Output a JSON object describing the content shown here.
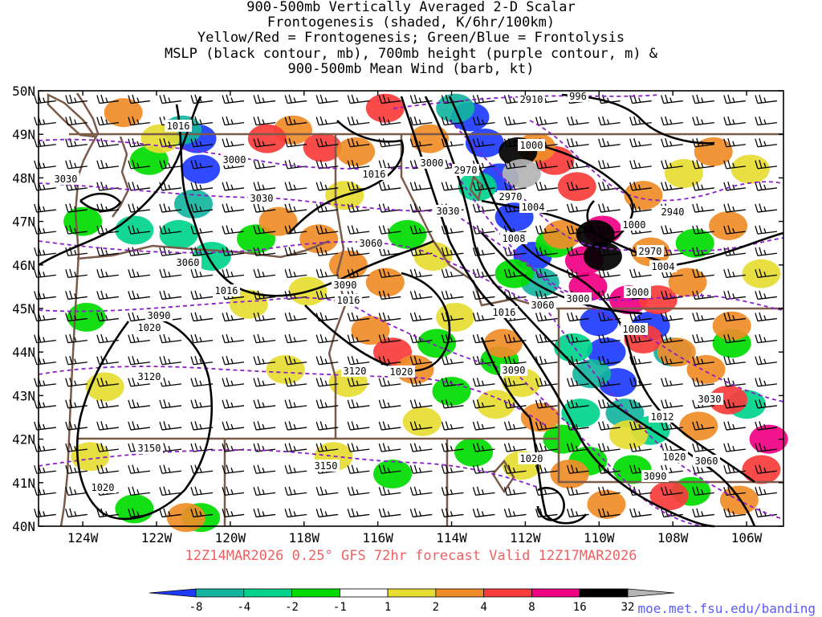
{
  "title_lines": [
    "900-500mb Vertically Averaged 2-D Scalar",
    "Frontogenesis (shaded, K/6hr/100km)",
    "Yellow/Red = Frontogenesis;  Green/Blue = Frontolysis",
    "MSLP (black contour, mb), 700mb height (purple contour, m) &",
    "900-500mb Mean Wind (barb, kt)"
  ],
  "footer_run": "12Z14MAR2026 0.25° GFS 72hr forecast Valid 12Z17MAR2026",
  "site": "moe.met.fsu.edu/banding",
  "chart_data": {
    "type": "heatmap",
    "title": "900-500mb Vertically Averaged 2-D Scalar Frontogenesis (shaded, K/6hr/100km)",
    "xlabel": "",
    "ylabel": "",
    "xlim": [
      -125.2,
      -105.0
    ],
    "ylim": [
      40,
      50
    ],
    "x_ticks": [
      {
        "value": -124,
        "label": "124W"
      },
      {
        "value": -122,
        "label": "122W"
      },
      {
        "value": -120,
        "label": "120W"
      },
      {
        "value": -118,
        "label": "118W"
      },
      {
        "value": -116,
        "label": "116W"
      },
      {
        "value": -114,
        "label": "114W"
      },
      {
        "value": -112,
        "label": "112W"
      },
      {
        "value": -110,
        "label": "110W"
      },
      {
        "value": -108,
        "label": "108W"
      },
      {
        "value": -106,
        "label": "106W"
      }
    ],
    "y_ticks": [
      {
        "value": 40,
        "label": "40N"
      },
      {
        "value": 41,
        "label": "41N"
      },
      {
        "value": 42,
        "label": "42N"
      },
      {
        "value": 43,
        "label": "43N"
      },
      {
        "value": 44,
        "label": "44N"
      },
      {
        "value": 45,
        "label": "45N"
      },
      {
        "value": 46,
        "label": "46N"
      },
      {
        "value": 47,
        "label": "47N"
      },
      {
        "value": 48,
        "label": "48N"
      },
      {
        "value": 49,
        "label": "49N"
      },
      {
        "value": 50,
        "label": "50N"
      }
    ],
    "colorbar": {
      "bins": [
        {
          "lo": null,
          "hi": -8,
          "color": "#1e3cff"
        },
        {
          "lo": -8,
          "hi": -4,
          "color": "#14b4a0"
        },
        {
          "lo": -4,
          "hi": -2,
          "color": "#00d28c"
        },
        {
          "lo": -2,
          "hi": -1,
          "color": "#00dc00"
        },
        {
          "lo": -1,
          "hi": 1,
          "color": "#ffffff"
        },
        {
          "lo": 1,
          "hi": 2,
          "color": "#e6dc32"
        },
        {
          "lo": 2,
          "hi": 4,
          "color": "#f08c28"
        },
        {
          "lo": 4,
          "hi": 8,
          "color": "#fa3c3c"
        },
        {
          "lo": 8,
          "hi": 16,
          "color": "#f00082"
        },
        {
          "lo": 16,
          "hi": 32,
          "color": "#000000"
        },
        {
          "lo": 32,
          "hi": null,
          "color": "#b4b4b4"
        }
      ],
      "labels": [
        "-8",
        "-4",
        "-2",
        "-1",
        "1",
        "2",
        "4",
        "8",
        "16",
        "32"
      ]
    },
    "frontogenesis_cells": [
      {
        "lon": -120.9,
        "lat": 48.9,
        "value": -10
      },
      {
        "lon": -120.8,
        "lat": 48.2,
        "value": -10
      },
      {
        "lon": -121.3,
        "lat": 49.1,
        "value": -5
      },
      {
        "lon": -121.0,
        "lat": 47.4,
        "value": -5
      },
      {
        "lon": -121.4,
        "lat": 46.7,
        "value": -3
      },
      {
        "lon": -120.5,
        "lat": 46.2,
        "value": -3
      },
      {
        "lon": -122.6,
        "lat": 46.8,
        "value": -3
      },
      {
        "lon": -122.2,
        "lat": 48.4,
        "value": -1.5
      },
      {
        "lon": -119.3,
        "lat": 46.6,
        "value": -1.5
      },
      {
        "lon": -115.2,
        "lat": 46.7,
        "value": -1.5
      },
      {
        "lon": -124.0,
        "lat": 47.0,
        "value": -1.5
      },
      {
        "lon": -123.9,
        "lat": 44.8,
        "value": -1.5
      },
      {
        "lon": -113.5,
        "lat": 49.4,
        "value": -10
      },
      {
        "lon": -113.1,
        "lat": 48.8,
        "value": -10
      },
      {
        "lon": -112.7,
        "lat": 48.0,
        "value": -10
      },
      {
        "lon": -112.3,
        "lat": 47.1,
        "value": -10
      },
      {
        "lon": -111.8,
        "lat": 46.2,
        "value": -10
      },
      {
        "lon": -113.9,
        "lat": 49.6,
        "value": -5
      },
      {
        "lon": -111.6,
        "lat": 45.6,
        "value": -5
      },
      {
        "lon": -113.3,
        "lat": 47.8,
        "value": -3
      },
      {
        "lon": -112.3,
        "lat": 45.8,
        "value": -1.5
      },
      {
        "lon": -111.2,
        "lat": 46.5,
        "value": -1.5
      },
      {
        "lon": -114.4,
        "lat": 44.2,
        "value": -1.5
      },
      {
        "lon": -114.0,
        "lat": 43.1,
        "value": -1.5
      },
      {
        "lon": -112.7,
        "lat": 43.8,
        "value": -1.5
      },
      {
        "lon": -113.4,
        "lat": 41.7,
        "value": -1.5
      },
      {
        "lon": -110.0,
        "lat": 44.7,
        "value": -10
      },
      {
        "lon": -109.8,
        "lat": 44.0,
        "value": -10
      },
      {
        "lon": -109.5,
        "lat": 43.3,
        "value": -10
      },
      {
        "lon": -110.2,
        "lat": 43.5,
        "value": -5
      },
      {
        "lon": -109.3,
        "lat": 42.6,
        "value": -5
      },
      {
        "lon": -108.6,
        "lat": 44.6,
        "value": -10
      },
      {
        "lon": -108.0,
        "lat": 44.0,
        "value": -5
      },
      {
        "lon": -110.7,
        "lat": 44.1,
        "value": -3
      },
      {
        "lon": -110.5,
        "lat": 42.6,
        "value": -3
      },
      {
        "lon": -108.6,
        "lat": 42.2,
        "value": -3
      },
      {
        "lon": -110.3,
        "lat": 41.5,
        "value": -1.5
      },
      {
        "lon": -109.1,
        "lat": 41.3,
        "value": -1.5
      },
      {
        "lon": -111.0,
        "lat": 42.0,
        "value": -1.5
      },
      {
        "lon": -107.4,
        "lat": 46.5,
        "value": -1.5
      },
      {
        "lon": -106.4,
        "lat": 44.2,
        "value": -1.5
      },
      {
        "lon": -106.0,
        "lat": 42.8,
        "value": -3
      },
      {
        "lon": -107.5,
        "lat": 40.8,
        "value": -1.5
      },
      {
        "lon": -120.8,
        "lat": 40.2,
        "value": -1.5
      },
      {
        "lon": -122.6,
        "lat": 40.4,
        "value": -1.5
      },
      {
        "lon": -115.6,
        "lat": 41.2,
        "value": -1.5
      },
      {
        "lon": -122.9,
        "lat": 49.5,
        "value": 3
      },
      {
        "lon": -121.9,
        "lat": 48.9,
        "value": 1.5
      },
      {
        "lon": -118.3,
        "lat": 49.1,
        "value": 3
      },
      {
        "lon": -117.5,
        "lat": 48.7,
        "value": 5
      },
      {
        "lon": -119.0,
        "lat": 48.9,
        "value": 5
      },
      {
        "lon": -116.6,
        "lat": 48.6,
        "value": 3
      },
      {
        "lon": -115.8,
        "lat": 49.6,
        "value": 5
      },
      {
        "lon": -114.6,
        "lat": 48.9,
        "value": 3
      },
      {
        "lon": -116.9,
        "lat": 47.6,
        "value": 1.5
      },
      {
        "lon": -118.7,
        "lat": 47.0,
        "value": 3
      },
      {
        "lon": -117.6,
        "lat": 46.6,
        "value": 3
      },
      {
        "lon": -116.8,
        "lat": 46.0,
        "value": 3
      },
      {
        "lon": -117.9,
        "lat": 45.4,
        "value": 1.5
      },
      {
        "lon": -116.2,
        "lat": 44.5,
        "value": 3
      },
      {
        "lon": -115.6,
        "lat": 44.0,
        "value": 5
      },
      {
        "lon": -115.0,
        "lat": 43.6,
        "value": 3
      },
      {
        "lon": -116.8,
        "lat": 43.3,
        "value": 1.5
      },
      {
        "lon": -114.5,
        "lat": 46.2,
        "value": 1.5
      },
      {
        "lon": -115.8,
        "lat": 45.6,
        "value": 3
      },
      {
        "lon": -113.9,
        "lat": 44.8,
        "value": 1.5
      },
      {
        "lon": -112.6,
        "lat": 44.2,
        "value": 3
      },
      {
        "lon": -112.1,
        "lat": 43.3,
        "value": 1.5
      },
      {
        "lon": -111.6,
        "lat": 42.5,
        "value": 3
      },
      {
        "lon": -112.8,
        "lat": 42.8,
        "value": 1.5
      },
      {
        "lon": -111.2,
        "lat": 48.4,
        "value": 5
      },
      {
        "lon": -110.6,
        "lat": 47.8,
        "value": 5
      },
      {
        "lon": -111.7,
        "lat": 48.7,
        "value": 3
      },
      {
        "lon": -111.0,
        "lat": 46.7,
        "value": 3
      },
      {
        "lon": -110.4,
        "lat": 46.1,
        "value": 10
      },
      {
        "lon": -109.9,
        "lat": 46.8,
        "value": 10
      },
      {
        "lon": -110.3,
        "lat": 45.5,
        "value": 10
      },
      {
        "lon": -109.9,
        "lat": 46.2,
        "value": 20
      },
      {
        "lon": -110.1,
        "lat": 46.7,
        "value": 20
      },
      {
        "lon": -112.2,
        "lat": 48.6,
        "value": 20
      },
      {
        "lon": -112.1,
        "lat": 48.1,
        "value": 40
      },
      {
        "lon": -109.2,
        "lat": 45.2,
        "value": 10
      },
      {
        "lon": -108.4,
        "lat": 45.2,
        "value": 5
      },
      {
        "lon": -108.8,
        "lat": 44.3,
        "value": 5
      },
      {
        "lon": -107.9,
        "lat": 44.0,
        "value": 3
      },
      {
        "lon": -107.6,
        "lat": 45.6,
        "value": 3
      },
      {
        "lon": -108.6,
        "lat": 46.3,
        "value": 3
      },
      {
        "lon": -108.8,
        "lat": 47.6,
        "value": 3
      },
      {
        "lon": -107.7,
        "lat": 48.1,
        "value": 1.5
      },
      {
        "lon": -106.9,
        "lat": 48.6,
        "value": 3
      },
      {
        "lon": -106.5,
        "lat": 46.9,
        "value": 3
      },
      {
        "lon": -105.9,
        "lat": 48.2,
        "value": 1.5
      },
      {
        "lon": -105.6,
        "lat": 45.8,
        "value": 1.5
      },
      {
        "lon": -106.4,
        "lat": 44.6,
        "value": 3
      },
      {
        "lon": -107.1,
        "lat": 43.6,
        "value": 3
      },
      {
        "lon": -106.5,
        "lat": 42.9,
        "value": 5
      },
      {
        "lon": -107.3,
        "lat": 42.3,
        "value": 3
      },
      {
        "lon": -105.4,
        "lat": 42.0,
        "value": 10
      },
      {
        "lon": -105.6,
        "lat": 41.3,
        "value": 5
      },
      {
        "lon": -106.2,
        "lat": 40.6,
        "value": 3
      },
      {
        "lon": -108.1,
        "lat": 40.7,
        "value": 5
      },
      {
        "lon": -109.8,
        "lat": 40.5,
        "value": 3
      },
      {
        "lon": -110.8,
        "lat": 41.2,
        "value": 3
      },
      {
        "lon": -109.2,
        "lat": 42.1,
        "value": 1.5
      },
      {
        "lon": -112.1,
        "lat": 41.4,
        "value": 1.5
      },
      {
        "lon": -123.4,
        "lat": 43.2,
        "value": 1.5
      },
      {
        "lon": -118.5,
        "lat": 43.6,
        "value": 1.5
      },
      {
        "lon": -114.8,
        "lat": 42.4,
        "value": 1.5
      },
      {
        "lon": -117.2,
        "lat": 41.6,
        "value": 1.5
      },
      {
        "lon": -121.2,
        "lat": 40.2,
        "value": 3
      },
      {
        "lon": -119.5,
        "lat": 45.1,
        "value": 1.5
      },
      {
        "lon": -123.8,
        "lat": 41.6,
        "value": 1.5
      }
    ],
    "mslp_contours_mb": [
      "996",
      "1000",
      "1000",
      "1004",
      "1004",
      "1008",
      "1008",
      "1012",
      "1016",
      "1016",
      "1016",
      "1016",
      "1016",
      "1020",
      "1020",
      "1020",
      "1020",
      "1020",
      "1020"
    ],
    "height_700mb_contours_m": [
      "2910",
      "2940",
      "2970",
      "2970",
      "2970",
      "3000",
      "3000",
      "3000",
      "3000",
      "3030",
      "3030",
      "3030",
      "3030",
      "3060",
      "3060",
      "3060",
      "3060",
      "3090",
      "3090",
      "3090",
      "3090",
      "3120",
      "3120",
      "3150",
      "3150"
    ]
  }
}
